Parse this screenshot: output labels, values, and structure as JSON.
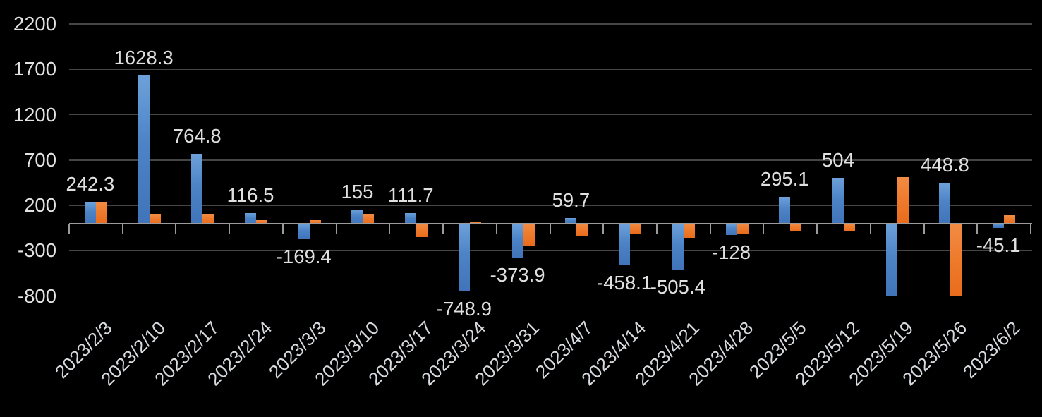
{
  "chart_data": {
    "type": "bar",
    "title": "",
    "legend": "none",
    "background_color": "#000000",
    "categories": [
      "2023/2/3",
      "2023/2/10",
      "2023/2/17",
      "2023/2/24",
      "2023/3/3",
      "2023/3/10",
      "2023/3/17",
      "2023/3/24",
      "2023/3/31",
      "2023/4/7",
      "2023/4/14",
      "2023/4/21",
      "2023/4/28",
      "2023/5/5",
      "2023/5/12",
      "2023/5/19",
      "2023/5/26",
      "2023/6/2"
    ],
    "series": [
      {
        "name": "series-1-blue",
        "color": "#4f86c6",
        "values": [
          242.3,
          1628.3,
          764.8,
          116.5,
          -169.4,
          155,
          111.7,
          -748.9,
          -373.9,
          59.7,
          -458.1,
          -505.4,
          -128,
          295.1,
          504,
          -800,
          448.8,
          -45.1
        ],
        "data_labels": [
          "242.3",
          "1628.3",
          "764.8",
          "116.5",
          "-169.4",
          "155",
          "111.7",
          "-748.9",
          "-373.9",
          "59.7",
          "-458.1",
          "-505.4",
          "-128",
          "295.1",
          "504",
          null,
          "448.8",
          "-45.1"
        ]
      },
      {
        "name": "series-2-orange",
        "color": "#ed7827",
        "values": [
          240,
          100,
          110,
          35,
          35,
          110,
          -150,
          15,
          -240,
          -130,
          -110,
          -160,
          -110,
          -90,
          -90,
          510,
          -800,
          90
        ],
        "data_labels": null
      }
    ],
    "y_axis": {
      "ticks": [
        2200,
        1700,
        1200,
        700,
        200,
        -300,
        -800
      ],
      "min": -800,
      "max": 2200,
      "gridlines": true
    },
    "x_axis": {
      "label_rotation_deg": -45
    }
  }
}
